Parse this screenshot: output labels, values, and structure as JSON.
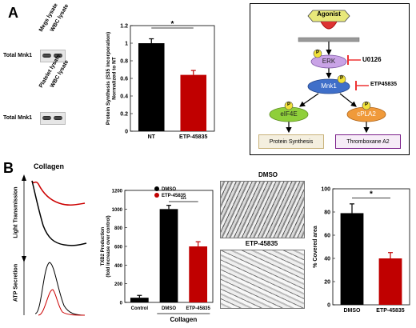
{
  "panelA": {
    "letter": "A",
    "blots": [
      {
        "lane1": "Megs lysate",
        "lane2": "WBC lysate",
        "row_label": "Total Mnk1"
      },
      {
        "lane1": "Platelet lysate",
        "lane2": "WBC lysate",
        "row_label": "Total Mnk1"
      }
    ],
    "significance": "*"
  },
  "panelB": {
    "letter": "B",
    "collagen_title": "Collagen",
    "trace_labels": {
      "top": "Light Transmission",
      "bottom": "ATP Secretion"
    },
    "micro_labels": {
      "top": "DMSO",
      "bottom": "ETP-45835"
    },
    "significance_txb2": "***",
    "significance_area": "*",
    "collagen_group_label": "Collagen"
  },
  "pathway": {
    "agonist": "Agonist",
    "erk": "ERK",
    "inhibitor1": "U0126",
    "mnk1": "Mnk1",
    "inhibitor2": "ETP45835",
    "eif4e": "eIF4E",
    "cpla2": "cPLA2",
    "phospho": "P",
    "out1": "Protein Synthesis",
    "out2": "Thromboxane A2",
    "colors": {
      "agonist": "#e8e87a",
      "erk": "#c9a3e6",
      "mnk1": "#3f6fc9",
      "eif4e": "#8fcf3a",
      "cpla2": "#f09a3a",
      "out1_border": "#c8b27a",
      "out2_border": "#7a1f8a",
      "inhibitor": "#e33"
    }
  },
  "chart_data": [
    {
      "type": "bar",
      "categories": [
        "NT",
        "ETP-45835"
      ],
      "values": [
        1.0,
        0.64
      ],
      "errors": [
        0.05,
        0.05
      ],
      "ylabel": "Protein Synthesis (S35 incorporation) Normalized to NT",
      "ylim": [
        0,
        1.2
      ],
      "yticks": [
        "0",
        "0.2",
        "0.4",
        "0.6",
        "0.8",
        "1",
        "1.2"
      ],
      "colors": [
        "#000000",
        "#c00000"
      ]
    },
    {
      "type": "bar",
      "categories": [
        "Control",
        "DMSO",
        "ETP-45835"
      ],
      "values": [
        50,
        1000,
        600
      ],
      "errors": [
        25,
        40,
        50
      ],
      "ylabel": "TXB2 Production (fold increase over control)",
      "ylim": [
        0,
        1200
      ],
      "yticks": [
        "0",
        "200",
        "400",
        "600",
        "800",
        "1000",
        "1200"
      ],
      "legend": [
        "DMSO",
        "ETP-45835"
      ],
      "colors": [
        "#000000",
        "#000000",
        "#c00000"
      ]
    },
    {
      "type": "bar",
      "categories": [
        "DMSO",
        "ETP-45835"
      ],
      "values": [
        79,
        40
      ],
      "errors": [
        8,
        5
      ],
      "ylabel": "% Covered area",
      "ylim": [
        0,
        100
      ],
      "yticks": [
        "0",
        "20",
        "40",
        "60",
        "80",
        "100"
      ],
      "colors": [
        "#000000",
        "#c00000"
      ]
    }
  ]
}
